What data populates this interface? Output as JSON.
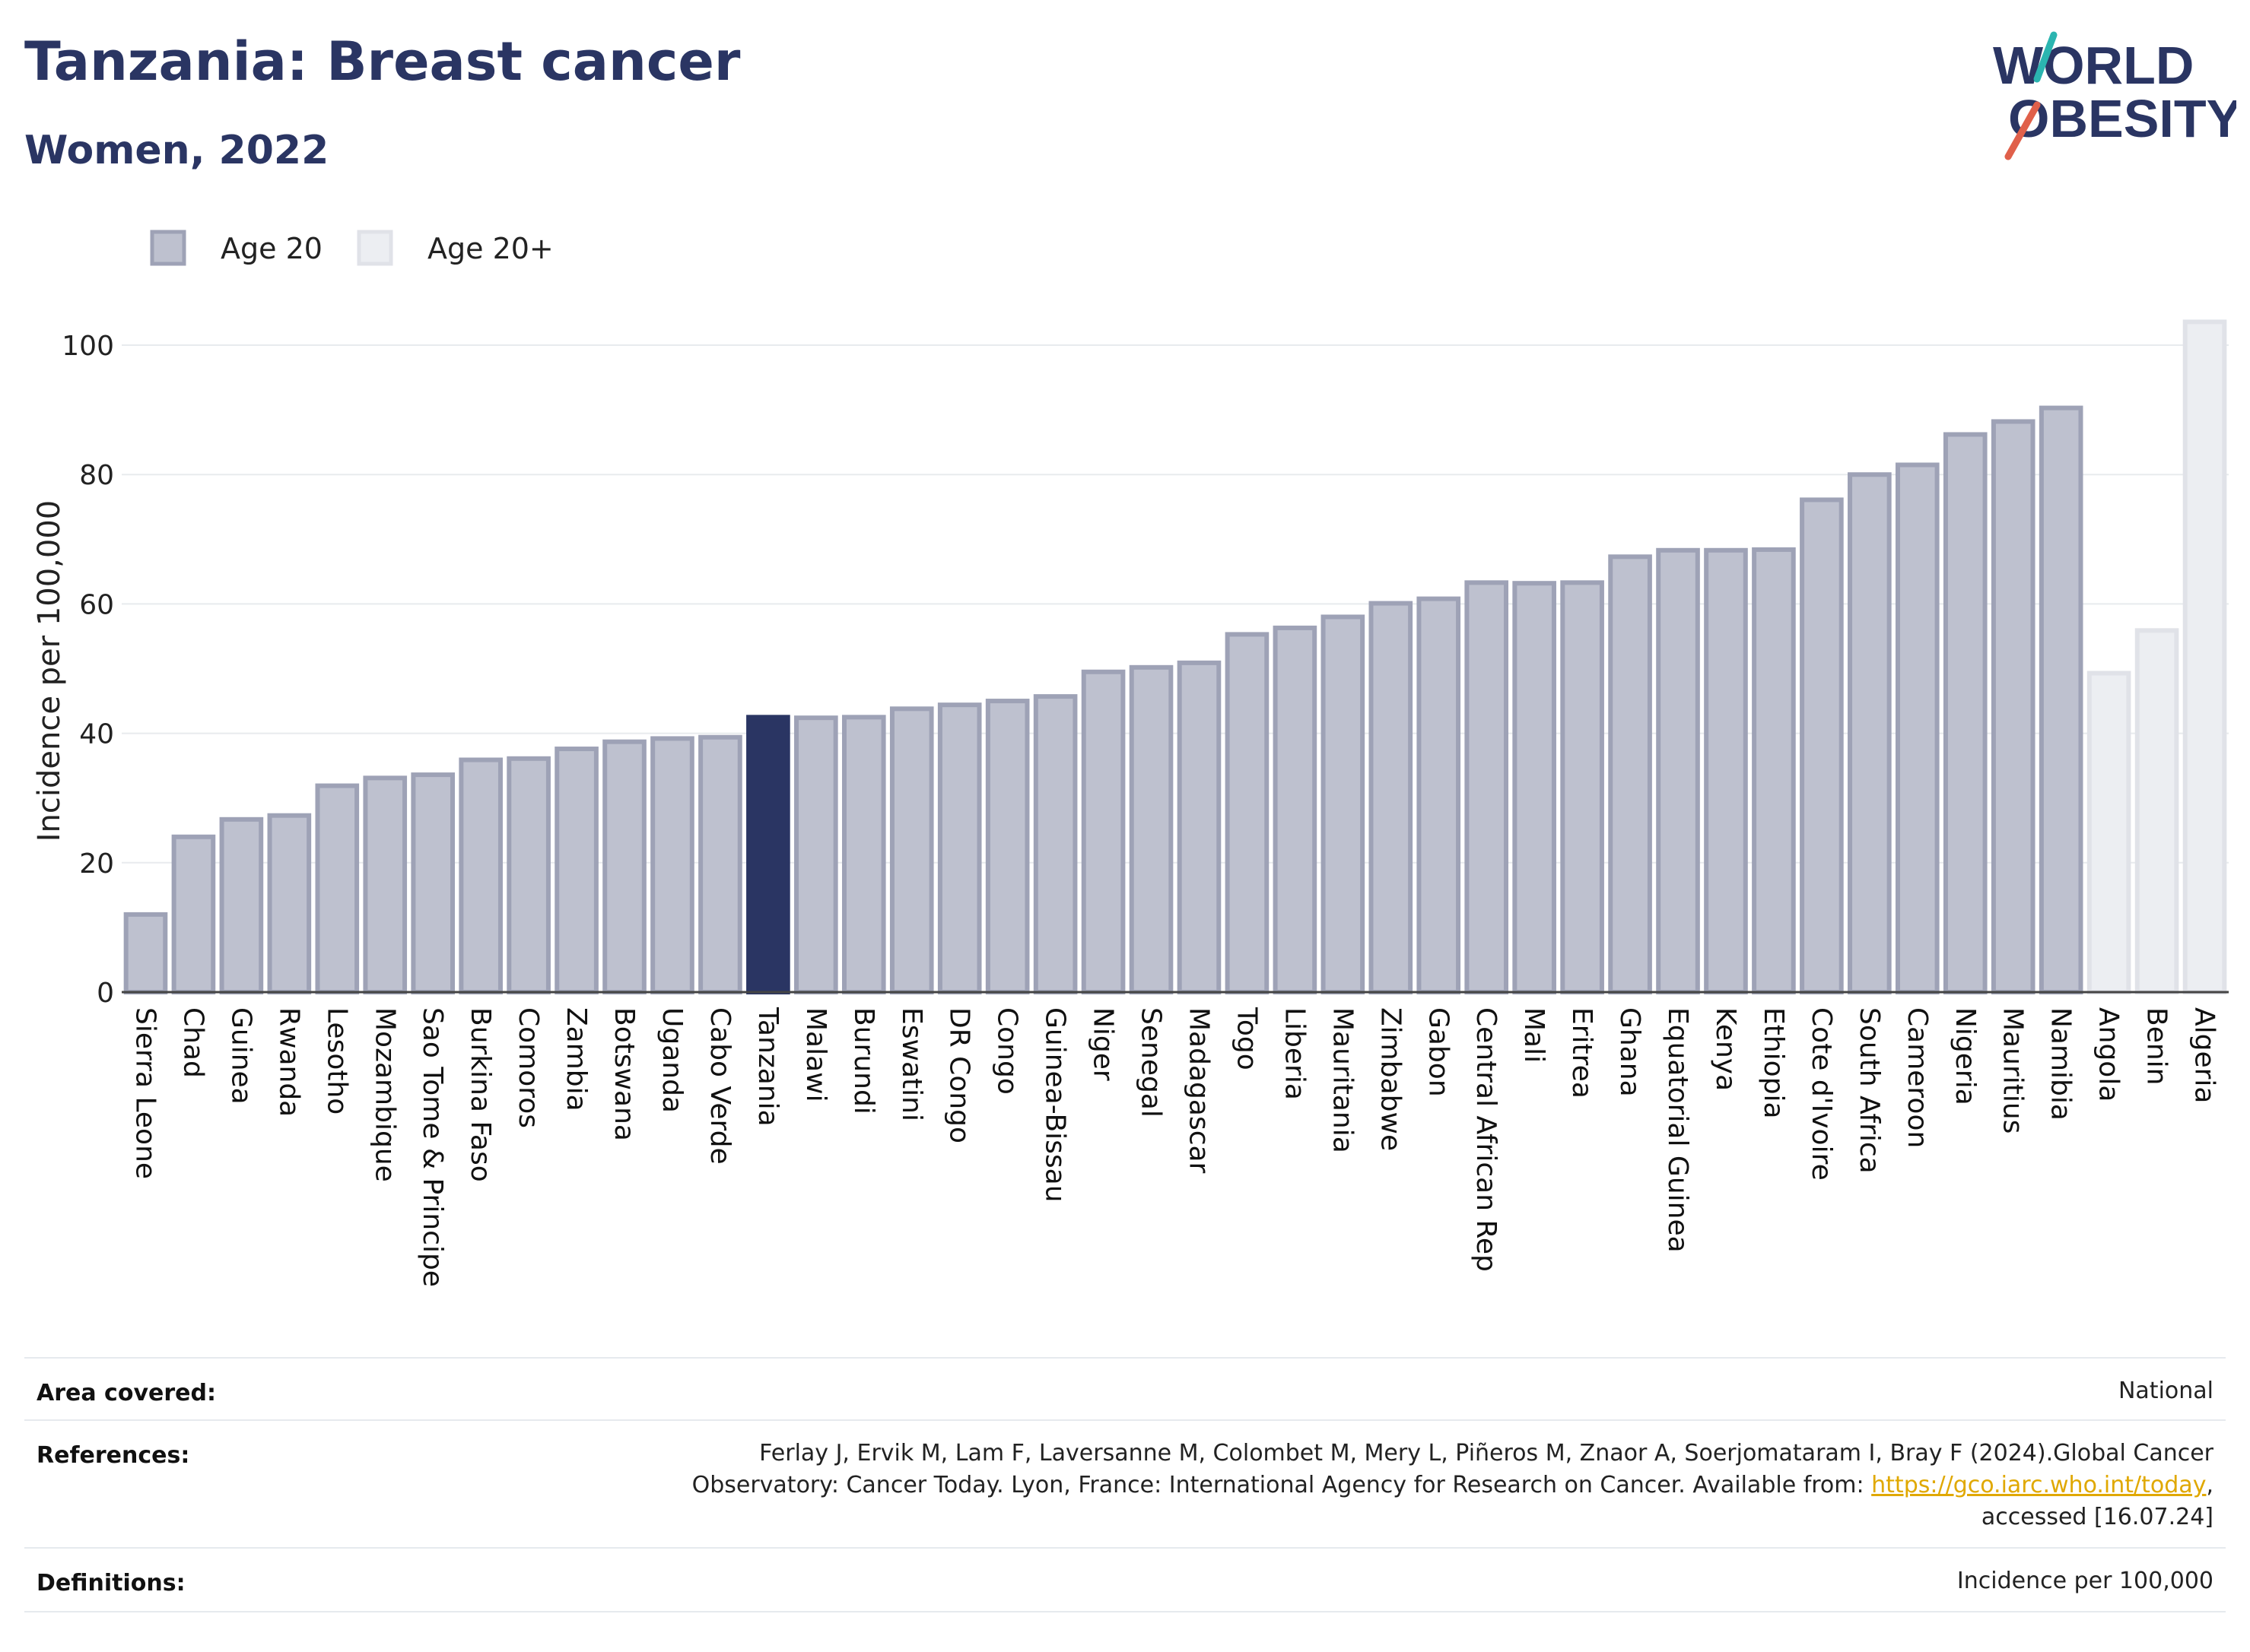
{
  "header": {
    "title": "Tanzania: Breast cancer",
    "subtitle": "Women, 2022",
    "logo_line1": "WORLD",
    "logo_line2": "OBESITY"
  },
  "chart_data": {
    "type": "bar",
    "xlabel": "",
    "ylabel": "Incidence per 100,000",
    "ylim": [
      0,
      104
    ],
    "yticks": [
      0,
      20,
      40,
      60,
      80,
      100
    ],
    "grid": true,
    "legend_position": "top-left",
    "legend": [
      {
        "name": "Age 20",
        "color": "#bec1cf",
        "border": "#9ea2b6"
      },
      {
        "name": "Age 20+",
        "color": "#eceef2",
        "border": "#e0e2e8"
      }
    ],
    "highlight": "Tanzania",
    "colors": {
      "age20": "#bec1cf",
      "age20_border": "#9ea2b6",
      "age20plus": "#eceef2",
      "age20plus_border": "#e0e2e8",
      "highlight": "#2a3563",
      "grid": "#e8ebee",
      "axis": "#444444"
    },
    "categories": [
      "Sierra Leone",
      "Chad",
      "Guinea",
      "Rwanda",
      "Lesotho",
      "Mozambique",
      "Sao Tome & Principe",
      "Burkina Faso",
      "Comoros",
      "Zambia",
      "Botswana",
      "Uganda",
      "Cabo Verde",
      "Tanzania",
      "Malawi",
      "Burundi",
      "Eswatini",
      "DR Congo",
      "Congo",
      "Guinea-Bissau",
      "Niger",
      "Senegal",
      "Madagascar",
      "Togo",
      "Liberia",
      "Mauritania",
      "Zimbabwe",
      "Gabon",
      "Central African Rep",
      "Mali",
      "Eritrea",
      "Ghana",
      "Equatorial Guinea",
      "Kenya",
      "Ethiopia",
      "Cote d'Ivoire",
      "South Africa",
      "Cameroon",
      "Nigeria",
      "Mauritius",
      "Namibia",
      "Angola",
      "Benin",
      "Algeria"
    ],
    "values": [
      12.0,
      24.0,
      26.7,
      27.3,
      31.9,
      33.1,
      33.6,
      35.9,
      36.1,
      37.6,
      38.7,
      39.2,
      39.4,
      42.5,
      42.4,
      42.5,
      43.8,
      44.4,
      45.0,
      45.7,
      49.5,
      50.2,
      50.9,
      55.3,
      56.3,
      58.0,
      60.1,
      60.8,
      63.3,
      63.2,
      63.3,
      67.3,
      68.3,
      68.3,
      68.4,
      76.1,
      80.0,
      81.5,
      86.2,
      88.2,
      90.3,
      49.3,
      55.9,
      103.6
    ],
    "groups": [
      "Age 20",
      "Age 20",
      "Age 20",
      "Age 20",
      "Age 20",
      "Age 20",
      "Age 20",
      "Age 20",
      "Age 20",
      "Age 20",
      "Age 20",
      "Age 20",
      "Age 20",
      "Age 20",
      "Age 20",
      "Age 20",
      "Age 20",
      "Age 20",
      "Age 20",
      "Age 20",
      "Age 20",
      "Age 20",
      "Age 20",
      "Age 20",
      "Age 20",
      "Age 20",
      "Age 20",
      "Age 20",
      "Age 20",
      "Age 20",
      "Age 20",
      "Age 20",
      "Age 20",
      "Age 20",
      "Age 20",
      "Age 20",
      "Age 20",
      "Age 20",
      "Age 20",
      "Age 20",
      "Age 20",
      "Age 20+",
      "Age 20+",
      "Age 20+"
    ]
  },
  "footer": {
    "area_label": "Area covered:",
    "area_value": "National",
    "references_label": "References:",
    "references_line1": "Ferlay J, Ervik M, Lam F, Laversanne M, Colombet M, Mery L, Piñeros M, Znaor A, Soerjomataram I, Bray F (2024).Global Cancer",
    "references_line2_pre": "Observatory: Cancer Today. Lyon, France: International Agency for Research on Cancer. Available from: ",
    "references_link": "https://gco.iarc.who.int/today",
    "references_line2_post": ",",
    "references_line3": "accessed [16.07.24]",
    "definitions_label": "Definitions:",
    "definitions_value": "Incidence per 100,000"
  }
}
